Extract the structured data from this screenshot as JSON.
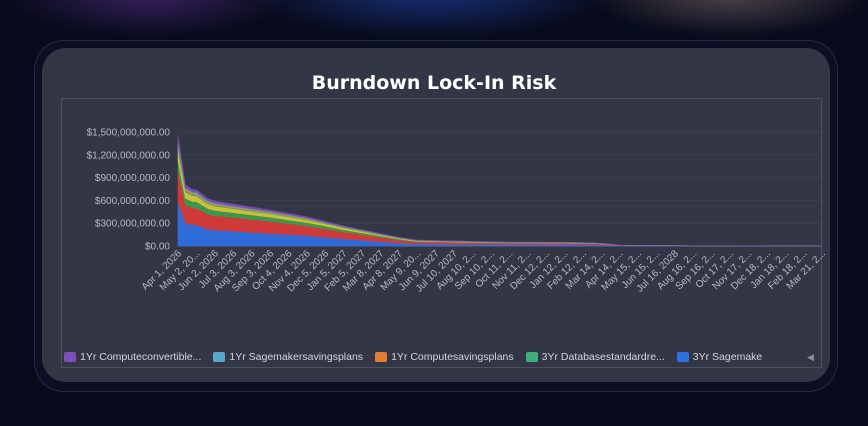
{
  "chart_data": {
    "type": "area",
    "stacked": true,
    "title": "Burndown Lock-In Risk",
    "x_tick_labels": [
      "Apr 1, 2026",
      "May 2, 20...",
      "Jun 2, 2026",
      "Jul 3, 2026",
      "Aug 3, 2026",
      "Sep 3, 2026",
      "Oct 4, 2026",
      "Nov 4, 2026",
      "Dec 5, 2026",
      "Jan 5, 2027",
      "Feb 5, 2027",
      "Mar 8, 2027",
      "Apr 8, 2027",
      "May 9, 20...",
      "Jun 9, 2027",
      "Jul 10, 2027",
      "Aug 10, 2...",
      "Sep 10, 2...",
      "Oct 11, 2...",
      "Nov 11, 2...",
      "Dec 12, 2...",
      "Jan 12, 2...",
      "Feb 12, 2...",
      "Mar 14, 2...",
      "Apr 14, 2...",
      "May 15, 2...",
      "Jun 15, 2...",
      "Jul 16, 2028",
      "Aug 16, 2...",
      "Sep 16, 2...",
      "Oct 17, 2...",
      "Nov 17, 2...",
      "Dec 18, 2...",
      "Jan 18, 2...",
      "Feb 18, 2...",
      "Mar 21, 2..."
    ],
    "y_tick_labels": [
      "$0.00",
      "$300,000,000.00",
      "$600,000,000.00",
      "$900,000,000.00",
      "$1,200,000,000.00",
      "$1,500,000,000.00"
    ],
    "ylim": [
      0,
      1500000000
    ],
    "x_months": [
      0,
      0.4,
      0.8,
      1,
      1.6,
      2,
      3,
      4,
      5,
      6,
      7,
      8,
      9,
      10,
      11,
      12,
      13,
      14,
      15,
      16,
      17,
      18,
      19,
      20,
      21,
      22,
      23,
      24,
      25,
      26,
      27,
      28,
      29,
      30,
      31,
      32,
      33,
      34,
      35
    ],
    "legend_position": "bottom",
    "series": [
      {
        "name": "3Yr Sagemake",
        "color": "#2f6fe0",
        "values": [
          580000000,
          300000000,
          280000000,
          280000000,
          220000000,
          210000000,
          195000000,
          180000000,
          165000000,
          150000000,
          135000000,
          115000000,
          95000000,
          75000000,
          58000000,
          40000000,
          28000000,
          26000000,
          24000000,
          22000000,
          21000000,
          20000000,
          20000000,
          19000000,
          19000000,
          18000000,
          14000000,
          5000000,
          3000000,
          3000000,
          2000000,
          2000000,
          1000000,
          1000000,
          1000000,
          0,
          0,
          0,
          0
        ]
      },
      {
        "name": "",
        "color": "#d73a3a",
        "values": [
          420000000,
          240000000,
          220000000,
          220000000,
          200000000,
          190000000,
          180000000,
          170000000,
          160000000,
          145000000,
          130000000,
          110000000,
          90000000,
          75000000,
          57000000,
          40000000,
          26000000,
          24000000,
          22000000,
          20000000,
          18000000,
          17000000,
          17000000,
          16000000,
          16000000,
          15000000,
          12000000,
          4000000,
          3000000,
          2000000,
          2000000,
          1000000,
          1000000,
          1000000,
          0,
          0,
          0,
          0,
          0
        ]
      },
      {
        "name": "",
        "color": "#3f9a4c",
        "values": [
          130000000,
          90000000,
          85000000,
          85000000,
          75000000,
          70000000,
          65000000,
          60000000,
          55000000,
          50000000,
          45000000,
          38000000,
          30000000,
          24000000,
          18000000,
          12000000,
          8000000,
          7000000,
          7000000,
          6000000,
          6000000,
          5000000,
          5000000,
          5000000,
          5000000,
          4000000,
          3000000,
          1000000,
          1000000,
          1000000,
          0,
          0,
          0,
          0,
          0,
          0,
          0,
          0,
          0
        ]
      },
      {
        "name": "",
        "color": "#d6c634",
        "values": [
          120000000,
          80000000,
          75000000,
          75000000,
          60000000,
          55000000,
          50000000,
          46000000,
          42000000,
          38000000,
          34000000,
          28000000,
          22000000,
          17000000,
          13000000,
          9000000,
          6000000,
          5000000,
          5000000,
          5000000,
          4000000,
          4000000,
          4000000,
          4000000,
          4000000,
          3000000,
          2000000,
          1000000,
          1000000,
          0,
          0,
          0,
          0,
          0,
          0,
          0,
          0,
          0,
          0
        ]
      },
      {
        "name": "3Yr Databasestandardre...",
        "color": "#3fae7f",
        "values": [
          40000000,
          20000000,
          18000000,
          18000000,
          15000000,
          14000000,
          13000000,
          12000000,
          11000000,
          10000000,
          9000000,
          7000000,
          6000000,
          5000000,
          4000000,
          3000000,
          2000000,
          2000000,
          2000000,
          2000000,
          1000000,
          1000000,
          1000000,
          1000000,
          1000000,
          1000000,
          1000000,
          0,
          0,
          0,
          0,
          0,
          0,
          0,
          0,
          0,
          0,
          0,
          0
        ]
      },
      {
        "name": "1Yr Computesavingsplans",
        "color": "#e07f34",
        "values": [
          40000000,
          20000000,
          18000000,
          18000000,
          15000000,
          14000000,
          13000000,
          12000000,
          11000000,
          10000000,
          9000000,
          7000000,
          6000000,
          5000000,
          4000000,
          3000000,
          2000000,
          2000000,
          2000000,
          2000000,
          1000000,
          1000000,
          1000000,
          1000000,
          1000000,
          1000000,
          1000000,
          0,
          0,
          0,
          0,
          0,
          0,
          0,
          0,
          0,
          0,
          0,
          0
        ]
      },
      {
        "name": "1Yr Sagemakersavingsplans",
        "color": "#5aa7c8",
        "values": [
          30000000,
          15000000,
          14000000,
          14000000,
          12000000,
          11000000,
          10000000,
          9000000,
          8000000,
          7000000,
          6000000,
          5000000,
          4000000,
          3000000,
          3000000,
          2000000,
          2000000,
          1000000,
          1000000,
          1000000,
          1000000,
          1000000,
          1000000,
          1000000,
          1000000,
          1000000,
          1000000,
          0,
          0,
          0,
          0,
          0,
          0,
          0,
          0,
          0,
          0,
          0,
          0
        ]
      },
      {
        "name": "1Yr Computeconvertible...",
        "color": "#7a4fb8",
        "values": [
          90000000,
          35000000,
          30000000,
          30000000,
          28000000,
          27000000,
          25000000,
          23000000,
          21000000,
          19000000,
          17000000,
          14000000,
          12000000,
          10000000,
          8000000,
          6000000,
          4000000,
          4000000,
          4000000,
          4000000,
          3000000,
          3000000,
          3000000,
          3000000,
          3000000,
          3000000,
          2000000,
          1000000,
          0,
          0,
          0,
          0,
          0,
          0,
          0,
          0,
          0,
          0,
          0
        ]
      }
    ],
    "legend_entries": [
      {
        "label": "1Yr Computeconvertible...",
        "color": "#7a4fb8"
      },
      {
        "label": "1Yr Sagemakersavingsplans",
        "color": "#5aa7c8"
      },
      {
        "label": "1Yr Computesavingsplans",
        "color": "#e07f34"
      },
      {
        "label": "3Yr Databasestandardre...",
        "color": "#3fae7f"
      },
      {
        "label": "3Yr Sagemake",
        "color": "#2f6fe0"
      }
    ],
    "legend_scroll_icon": "chevron-left-icon"
  }
}
